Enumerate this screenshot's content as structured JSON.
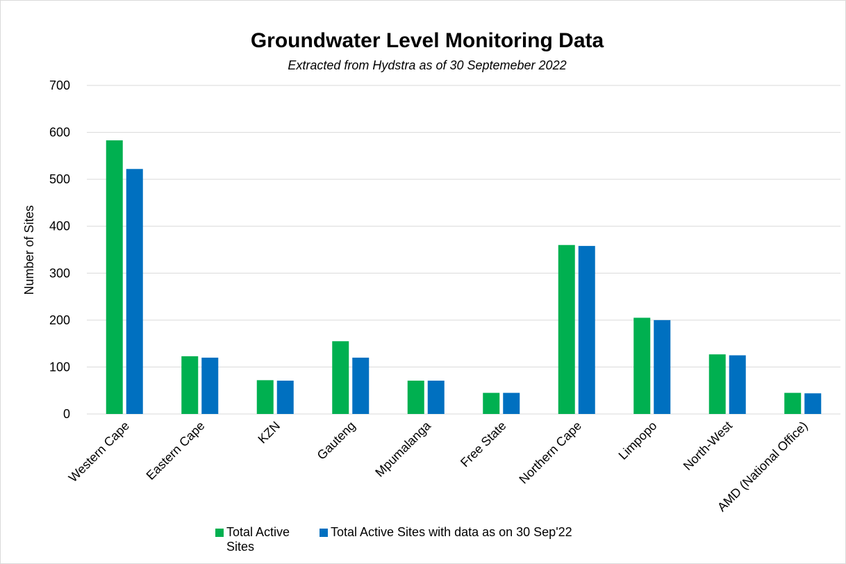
{
  "chart_data": {
    "type": "bar",
    "title": "Groundwater Level Monitoring Data",
    "subtitle": "Extracted from Hydstra as of 30 Septemeber 2022",
    "y_label": "Number of Sites",
    "categories": [
      "Western Cape",
      "Eastern Cape",
      "KZN",
      "Gauteng",
      "Mpumalanga",
      "Free State",
      "Northern Cape",
      "Limpopo",
      "North-West",
      "AMD (National Office)"
    ],
    "series": [
      {
        "name": "Total Active Sites",
        "color": "#00b050",
        "values": [
          583,
          123,
          72,
          155,
          71,
          45,
          360,
          205,
          127,
          45
        ]
      },
      {
        "name": "Total Active Sites with data as on 30 Sep'22",
        "color": "#0070c0",
        "values": [
          522,
          120,
          71,
          120,
          71,
          45,
          358,
          200,
          125,
          44
        ]
      }
    ],
    "ylim": [
      0,
      700
    ],
    "yticks": [
      0,
      100,
      200,
      300,
      400,
      500,
      600,
      700
    ],
    "grid": true,
    "legend": "bottom"
  }
}
